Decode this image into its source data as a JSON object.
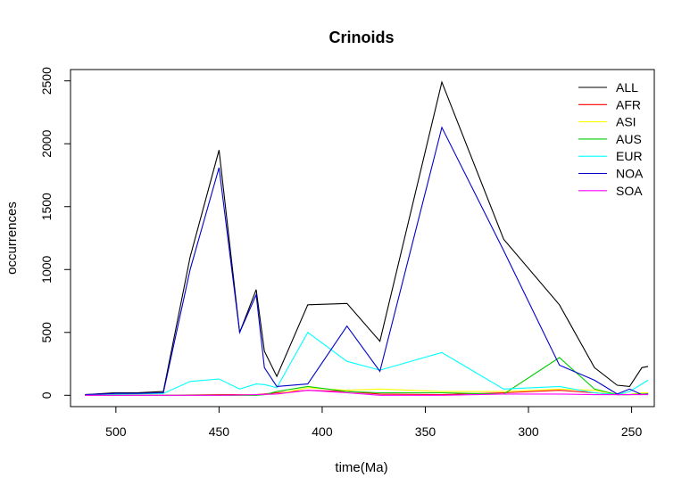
{
  "chart_data": {
    "type": "line",
    "title": "Crinoids",
    "xlabel": "time(Ma)",
    "ylabel": "occurrences",
    "x_reversed": true,
    "xlim": [
      522,
      239
    ],
    "ylim": [
      -90,
      2590
    ],
    "x_ticks": [
      500,
      450,
      400,
      350,
      300,
      250
    ],
    "y_ticks": [
      0,
      500,
      1000,
      1500,
      2000,
      2500
    ],
    "legend_position": "top-right",
    "grid": false,
    "series": [
      {
        "name": "ALL",
        "color": "#000000",
        "x": [
          515,
          500,
          490,
          477,
          464,
          450,
          440,
          432,
          428,
          422,
          407,
          388,
          372,
          342,
          312,
          285,
          268,
          257,
          251,
          245,
          242
        ],
        "y": [
          5,
          20,
          20,
          30,
          1100,
          1950,
          500,
          840,
          350,
          150,
          720,
          730,
          430,
          2490,
          1240,
          720,
          220,
          80,
          70,
          220,
          230
        ]
      },
      {
        "name": "AFR",
        "color": "#FF0000",
        "x": [
          515,
          500,
          477,
          450,
          432,
          422,
          407,
          388,
          372,
          342,
          312,
          285,
          268,
          257,
          251,
          245,
          242
        ],
        "y": [
          0,
          0,
          0,
          5,
          5,
          20,
          40,
          30,
          10,
          5,
          20,
          40,
          20,
          5,
          5,
          10,
          10
        ]
      },
      {
        "name": "ASI",
        "color": "#FFFF00",
        "x": [
          515,
          500,
          477,
          450,
          432,
          422,
          407,
          388,
          372,
          342,
          312,
          285,
          268,
          257,
          251,
          245,
          242
        ],
        "y": [
          0,
          0,
          0,
          0,
          5,
          10,
          60,
          40,
          50,
          30,
          30,
          50,
          40,
          10,
          5,
          20,
          20
        ]
      },
      {
        "name": "AUS",
        "color": "#00CC00",
        "x": [
          515,
          500,
          477,
          450,
          432,
          428,
          422,
          407,
          388,
          372,
          342,
          312,
          285,
          268,
          257,
          251,
          245,
          242
        ],
        "y": [
          0,
          0,
          0,
          0,
          0,
          5,
          30,
          70,
          30,
          20,
          20,
          10,
          300,
          50,
          5,
          5,
          10,
          10
        ]
      },
      {
        "name": "EUR",
        "color": "#00FFFF",
        "x": [
          515,
          500,
          477,
          464,
          450,
          440,
          432,
          428,
          422,
          407,
          388,
          372,
          342,
          312,
          285,
          268,
          257,
          251,
          245,
          242
        ],
        "y": [
          5,
          10,
          15,
          110,
          130,
          50,
          90,
          85,
          60,
          500,
          270,
          200,
          340,
          50,
          70,
          20,
          5,
          30,
          90,
          120
        ]
      },
      {
        "name": "NOA",
        "color": "#0000CC",
        "x": [
          515,
          500,
          490,
          477,
          464,
          450,
          440,
          432,
          428,
          422,
          407,
          388,
          372,
          342,
          312,
          285,
          268,
          257,
          251,
          245,
          242
        ],
        "y": [
          5,
          15,
          15,
          20,
          1000,
          1810,
          500,
          800,
          220,
          70,
          90,
          550,
          190,
          2130,
          1150,
          240,
          120,
          10,
          50,
          5,
          10
        ]
      },
      {
        "name": "SOA",
        "color": "#FF00FF",
        "x": [
          515,
          500,
          477,
          450,
          432,
          422,
          407,
          388,
          372,
          342,
          312,
          285,
          268,
          257,
          251,
          245,
          242
        ],
        "y": [
          0,
          0,
          0,
          0,
          5,
          10,
          40,
          20,
          0,
          0,
          10,
          10,
          5,
          5,
          5,
          5,
          5
        ]
      }
    ]
  }
}
